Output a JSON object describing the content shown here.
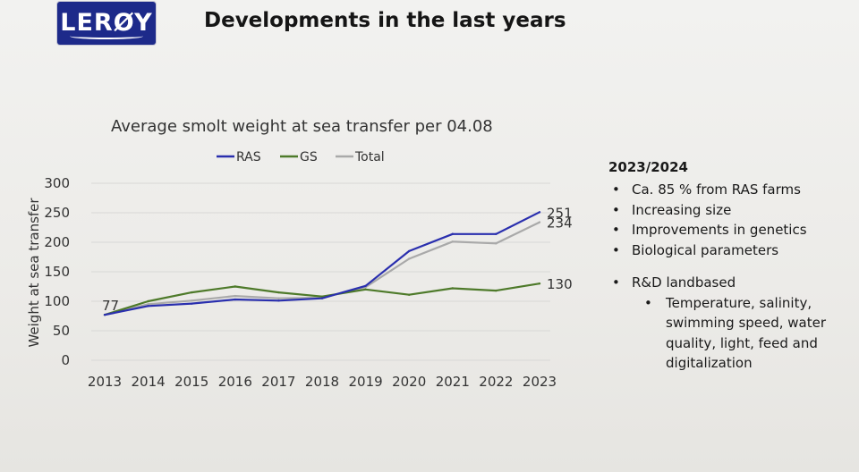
{
  "header": {
    "logo_text": "LERØY",
    "title": "Developments in the last years"
  },
  "notes": {
    "heading": "2023/2024",
    "bullets": [
      "Ca. 85 % from RAS farms",
      "Increasing size",
      "Improvements in genetics",
      "Biological parameters"
    ],
    "bullet2": "R&D landbased",
    "sub_bullet": "Temperature, salinity, swimming speed, water quality, light, feed and digitalization"
  },
  "chart_data": {
    "type": "line",
    "title": "Average smolt weight at sea transfer per 04.08",
    "xlabel": "",
    "ylabel": "Weight at sea transfer",
    "ylim": [
      0,
      300
    ],
    "yticks": [
      0,
      50,
      100,
      150,
      200,
      250,
      300
    ],
    "grid": true,
    "legend": "top",
    "categories": [
      "2013",
      "2014",
      "2015",
      "2016",
      "2017",
      "2018",
      "2019",
      "2020",
      "2021",
      "2022",
      "2023"
    ],
    "series": [
      {
        "name": "RAS",
        "color": "#2a2fae",
        "values": [
          77,
          92,
          96,
          103,
          101,
          105,
          126,
          185,
          214,
          214,
          251
        ]
      },
      {
        "name": "GS",
        "color": "#4e7a2a",
        "values": [
          77,
          100,
          115,
          125,
          115,
          108,
          120,
          111,
          122,
          118,
          130
        ]
      },
      {
        "name": "Total",
        "color": "#a9a9a9",
        "values": [
          77,
          95,
          101,
          109,
          105,
          106,
          124,
          172,
          201,
          198,
          234
        ]
      }
    ],
    "data_labels": [
      {
        "text": "77",
        "series": "RAS",
        "index": 0
      },
      {
        "text": "251",
        "series": "RAS",
        "index": 10
      },
      {
        "text": "234",
        "series": "Total",
        "index": 10
      },
      {
        "text": "130",
        "series": "GS",
        "index": 10
      }
    ]
  }
}
